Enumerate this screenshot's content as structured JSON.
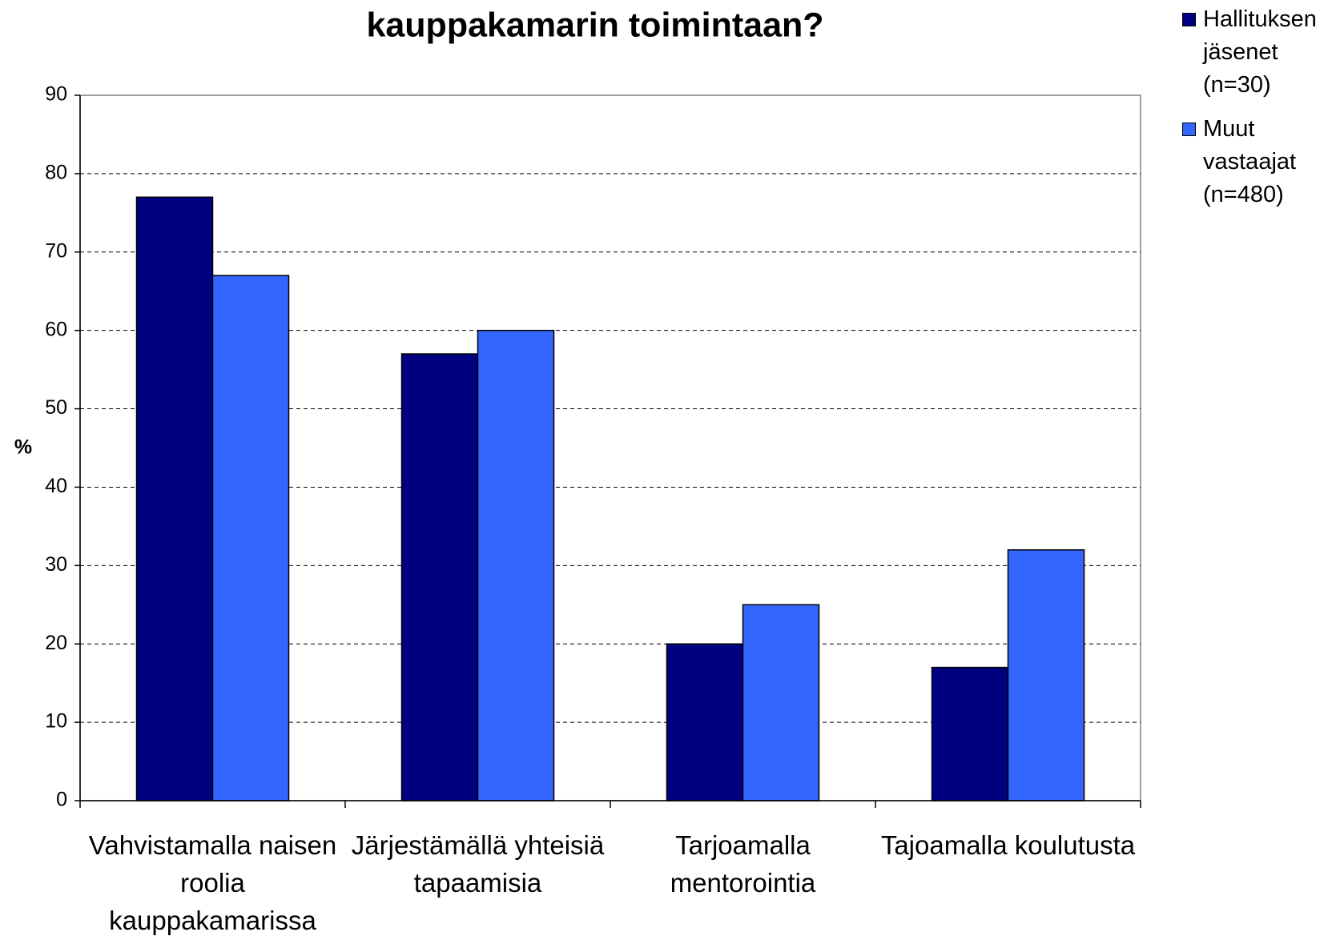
{
  "chart_data": {
    "type": "bar",
    "title": "kauppakamarin toimintaan?",
    "y_label": "%",
    "categories": [
      "Vahvistamalla naisen roolia kauppakamarissa",
      "Järjestämällä yhteisiä tapaamisia",
      "Tarjoamalla mentorointia",
      "Tajoamalla koulutusta"
    ],
    "series": [
      {
        "name": "Hallituksen jäsenet (n=30)",
        "color": "#000080",
        "values": [
          77,
          57,
          20,
          17
        ]
      },
      {
        "name": "Muut vastaajat (n=480)",
        "color": "#3366ff",
        "values": [
          67,
          60,
          25,
          32
        ]
      }
    ],
    "ylim": [
      0,
      90
    ],
    "yticks": [
      0,
      10,
      20,
      30,
      40,
      50,
      60,
      70,
      80,
      90
    ],
    "grid": true,
    "legend": "top-right"
  }
}
